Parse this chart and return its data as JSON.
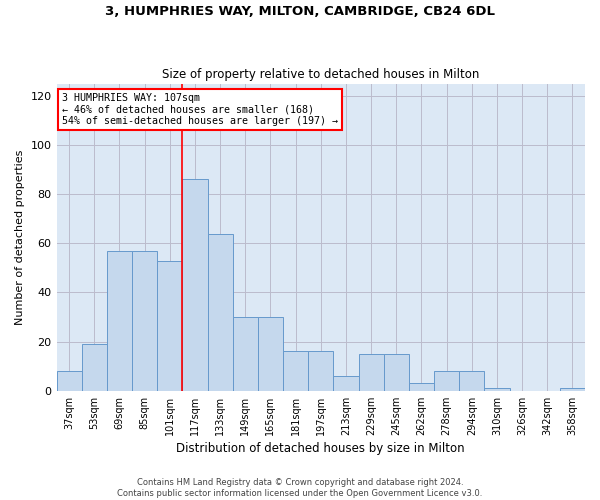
{
  "title1": "3, HUMPHRIES WAY, MILTON, CAMBRIDGE, CB24 6DL",
  "title2": "Size of property relative to detached houses in Milton",
  "xlabel": "Distribution of detached houses by size in Milton",
  "ylabel": "Number of detached properties",
  "footer1": "Contains HM Land Registry data © Crown copyright and database right 2024.",
  "footer2": "Contains public sector information licensed under the Open Government Licence v3.0.",
  "annotation_line1": "3 HUMPHRIES WAY: 107sqm",
  "annotation_line2": "← 46% of detached houses are smaller (168)",
  "annotation_line3": "54% of semi-detached houses are larger (197) →",
  "bar_heights": [
    8,
    19,
    57,
    57,
    53,
    86,
    64,
    30,
    30,
    16,
    16,
    6,
    15,
    15,
    3,
    8,
    8,
    1,
    0,
    0,
    1
  ],
  "categories": [
    "37sqm",
    "53sqm",
    "69sqm",
    "85sqm",
    "101sqm",
    "117sqm",
    "133sqm",
    "149sqm",
    "165sqm",
    "181sqm",
    "197sqm",
    "213sqm",
    "229sqm",
    "245sqm",
    "262sqm",
    "278sqm",
    "294sqm",
    "310sqm",
    "326sqm",
    "342sqm",
    "358sqm"
  ],
  "bar_color": "#c5d8ed",
  "bar_edge_color": "#6699cc",
  "marker_color": "red",
  "ylim": [
    0,
    125
  ],
  "yticks": [
    0,
    20,
    40,
    60,
    80,
    100,
    120
  ],
  "grid_color": "#bbbbcc",
  "bg_color": "#dce8f5",
  "figsize": [
    6.0,
    5.0
  ],
  "dpi": 100
}
